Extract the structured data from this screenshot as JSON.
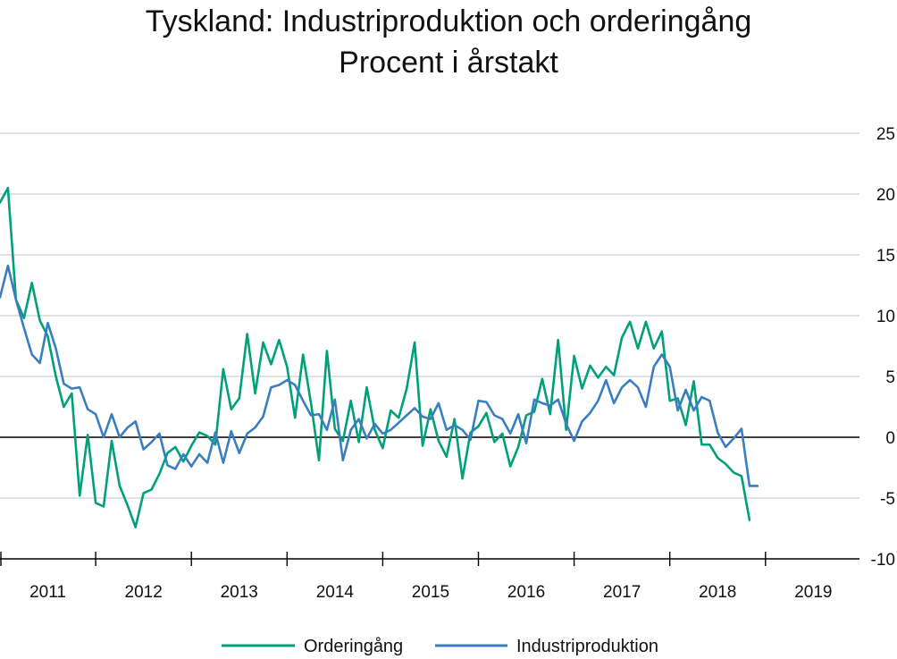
{
  "chart_data": {
    "type": "line",
    "title": "Tyskland: Industriproduktion och orderingång",
    "subtitle": "Procent i årstakt",
    "xlabel": "",
    "ylabel": "",
    "ylim": [
      -10,
      25
    ],
    "yticks": [
      25,
      20,
      15,
      10,
      5,
      0,
      -5,
      -10
    ],
    "xlim": [
      2011.0,
      2019.0
    ],
    "year_labels": [
      "2011",
      "2012",
      "2013",
      "2014",
      "2015",
      "2016",
      "2017",
      "2018",
      "2019"
    ],
    "grid": "horizontal",
    "zero_line": true,
    "legend_position": "bottom",
    "series": [
      {
        "name": "Orderingång",
        "color": "#00a07a",
        "x_start": "2011-01",
        "frequency": "monthly",
        "values": [
          19.3,
          20.5,
          11.3,
          9.8,
          12.7,
          9.6,
          8.3,
          5.0,
          2.5,
          3.6,
          -4.8,
          0.2,
          -5.4,
          -5.7,
          -0.3,
          -4.0,
          -5.6,
          -7.4,
          -4.6,
          -4.3,
          -3.0,
          -1.3,
          -0.8,
          -2.0,
          -0.7,
          0.4,
          0.1,
          -0.6,
          5.6,
          2.3,
          3.2,
          8.5,
          3.6,
          7.8,
          6.0,
          8.0,
          5.8,
          1.6,
          6.8,
          2.8,
          -1.9,
          7.1,
          0.7,
          -0.3,
          3.0,
          -0.4,
          4.1,
          0.6,
          -0.9,
          2.2,
          1.6,
          4.0,
          7.8,
          -0.7,
          2.3,
          -0.3,
          -1.6,
          1.5,
          -3.4,
          0.4,
          0.9,
          2.0,
          -0.4,
          0.3,
          -2.4,
          -0.8,
          1.8,
          2.1,
          4.8,
          1.9,
          8.0,
          0.6,
          6.7,
          4.0,
          5.9,
          4.9,
          5.8,
          5.1,
          8.2,
          9.5,
          7.3,
          9.5,
          7.3,
          8.7,
          3.0,
          3.2,
          1.0,
          4.6,
          -0.6,
          -0.6,
          -1.7,
          -2.2,
          -2.9,
          -3.2,
          -6.8
        ]
      },
      {
        "name": "Industriproduktion",
        "color": "#3a7ebf",
        "x_start": "2011-01",
        "frequency": "monthly",
        "values": [
          11.5,
          14.1,
          11.3,
          9.0,
          6.8,
          6.1,
          9.4,
          7.3,
          4.4,
          4.0,
          4.1,
          2.3,
          1.9,
          0.0,
          1.9,
          0.0,
          0.8,
          1.3,
          -1.0,
          -0.4,
          0.3,
          -2.3,
          -2.6,
          -1.4,
          -2.4,
          -1.4,
          -2.1,
          0.4,
          -2.1,
          0.5,
          -1.3,
          0.3,
          0.8,
          1.7,
          4.1,
          4.3,
          4.7,
          4.3,
          3.0,
          1.8,
          1.9,
          0.6,
          3.1,
          -1.9,
          0.6,
          1.5,
          -0.1,
          1.1,
          0.3,
          0.6,
          1.2,
          1.8,
          2.4,
          1.7,
          1.5,
          2.8,
          0.6,
          1.0,
          0.6,
          -0.2,
          3.0,
          2.9,
          1.8,
          1.5,
          0.3,
          1.9,
          -0.5,
          3.1,
          2.8,
          2.6,
          3.1,
          1.1,
          -0.3,
          1.3,
          2.0,
          3.0,
          4.7,
          2.8,
          4.1,
          4.7,
          4.1,
          2.5,
          5.8,
          6.8,
          5.8,
          2.2,
          3.9,
          2.2,
          3.3,
          3.0,
          0.4,
          -0.8,
          -0.1,
          0.7,
          -4.0,
          -4.0
        ]
      }
    ]
  }
}
